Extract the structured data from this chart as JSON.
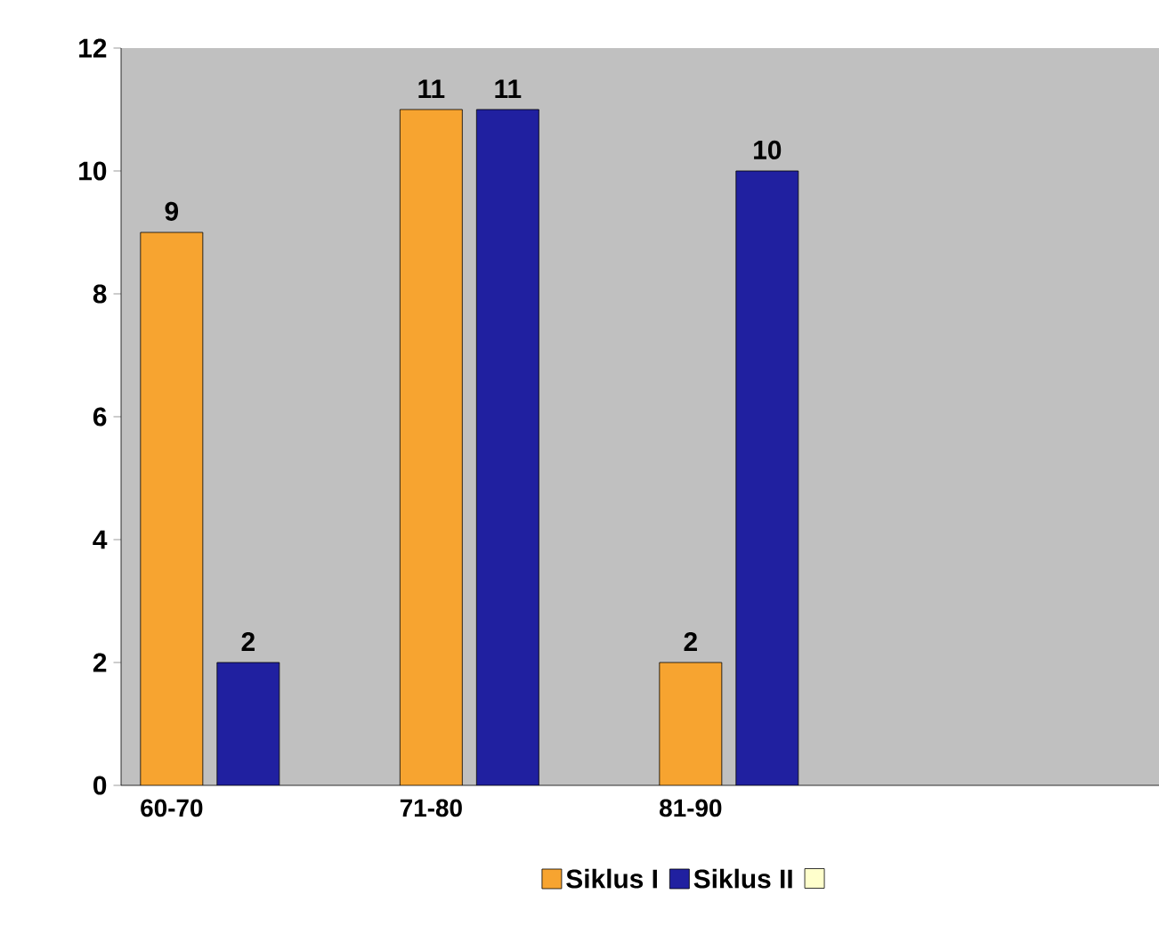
{
  "chart_data": {
    "type": "bar",
    "categories": [
      "60-70",
      "71-80",
      "81-90",
      null
    ],
    "series": [
      {
        "name": "Siklus I",
        "color": "#f7a430",
        "values": [
          9,
          11,
          2,
          null
        ]
      },
      {
        "name": "Siklus II",
        "color": "#2020a0",
        "values": [
          2,
          11,
          10,
          null
        ]
      },
      {
        "color": "#ffffcc",
        "values": [
          null,
          null,
          null,
          null
        ]
      }
    ],
    "ylim": [
      0,
      12
    ],
    "yticks": [
      0,
      2,
      4,
      6,
      8,
      10,
      12
    ],
    "data_labels": true,
    "legend": "bottom",
    "grid": false
  }
}
